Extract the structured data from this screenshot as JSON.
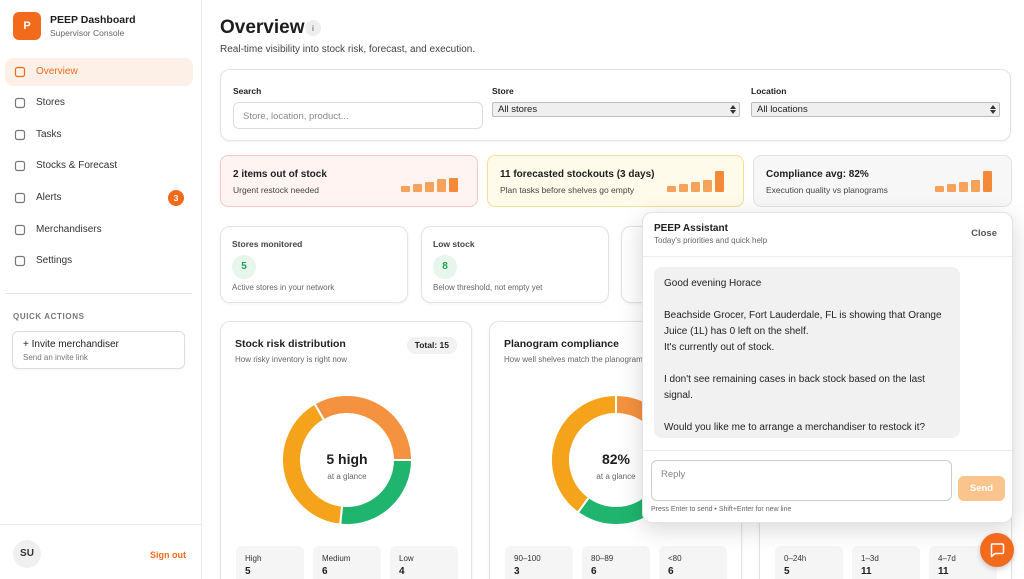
{
  "sidebar": {
    "logo": "P",
    "title": "PEEP Dashboard",
    "subtitle": "Supervisor Console",
    "nav": [
      {
        "label": "Overview"
      },
      {
        "label": "Stores"
      },
      {
        "label": "Tasks"
      },
      {
        "label": "Stocks & Forecast"
      },
      {
        "label": "Alerts",
        "badge": 3
      },
      {
        "label": "Merchandisers"
      },
      {
        "label": "Settings"
      }
    ],
    "quick_actions_title": "QUICK ACTIONS",
    "quick_action": {
      "label": "+ Invite merchandiser",
      "hint": "Send an invite link"
    },
    "user": "SU",
    "sign_out": "Sign out"
  },
  "header": {
    "title": "Overview",
    "info": "i",
    "subtitle": "Real-time visibility into stock risk, forecast, and execution."
  },
  "filters": [
    {
      "label": "Search",
      "placeholder": "Store, location, product..."
    },
    {
      "label": "Store",
      "value": "All stores"
    },
    {
      "label": "Location",
      "value": "All locations"
    }
  ],
  "alerts": [
    {
      "title": "2 items out of stock",
      "text": "Urgent restock needed"
    },
    {
      "title": "11 forecasted stockouts (3 days)",
      "text": "Plan tasks before shelves go empty"
    },
    {
      "title": "Compliance avg: 82%",
      "text": "Execution quality vs planograms"
    }
  ],
  "stats": [
    {
      "title": "Stores monitored",
      "value": 5,
      "text": "Active stores in your network"
    },
    {
      "title": "Low stock",
      "value": 8,
      "text": "Below threshold, not empty yet"
    }
  ],
  "charts": [
    {
      "title": "Stock risk distribution",
      "subtitle": "How risky inventory is right now",
      "badge": "Total: 15",
      "center": "5 high",
      "center_sub": "at a glance",
      "segments": [
        {
          "name": "High",
          "value": 5,
          "color": "#f4923f"
        },
        {
          "name": "Medium",
          "value": 6,
          "color": "#f5a31a"
        },
        {
          "name": "Low",
          "value": 4,
          "color": "#1fb56f"
        }
      ]
    },
    {
      "title": "Planogram compliance",
      "subtitle": "How well shelves match the planogram",
      "center": "82%",
      "center_sub": "at a glance",
      "segments": [
        {
          "name": "90–100",
          "value": 3,
          "color": "#f4923f"
        },
        {
          "name": "80–89",
          "value": 6,
          "color": "#1fb56f"
        },
        {
          "name": "<80",
          "value": 6,
          "color": "#f5a31a"
        }
      ]
    },
    {
      "segments": [
        {
          "name": "0–24h",
          "value": 5
        },
        {
          "name": "1–3d",
          "value": 11
        },
        {
          "name": "4–7d",
          "value": 11
        }
      ]
    }
  ],
  "assistant": {
    "title": "PEEP Assistant",
    "subtitle": "Today's priorities and quick help",
    "close": "Close",
    "message": [
      [
        "Good evening Horace"
      ],
      [
        "Beachside Grocer, Fort Lauderdale, FL is showing that Orange Juice (1L) has 0 left on the shelf.",
        "It's currently out of stock."
      ],
      [
        "I don't see remaining cases in back stock based on the last signal."
      ],
      [
        "Would you like me to arrange a merchandiser to restock it?"
      ]
    ],
    "placeholder": "Reply",
    "send": "Send",
    "hint": "Press Enter to send • Shift+Enter for new line"
  }
}
